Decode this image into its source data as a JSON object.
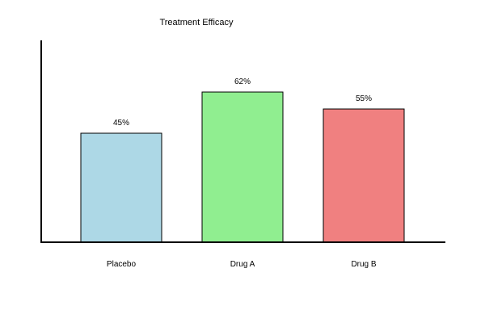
{
  "chart_data": {
    "type": "bar",
    "title": "Treatment Efficacy",
    "categories": [
      "Placebo",
      "Drug A",
      "Drug B"
    ],
    "values": [
      45,
      62,
      55
    ],
    "value_labels": [
      "45%",
      "62%",
      "55%"
    ],
    "colors": [
      "#add8e6",
      "#90ee90",
      "#f08080"
    ],
    "xlabel": "",
    "ylabel": "",
    "ylim": [
      0,
      100
    ],
    "grid": false,
    "legend": "none"
  }
}
